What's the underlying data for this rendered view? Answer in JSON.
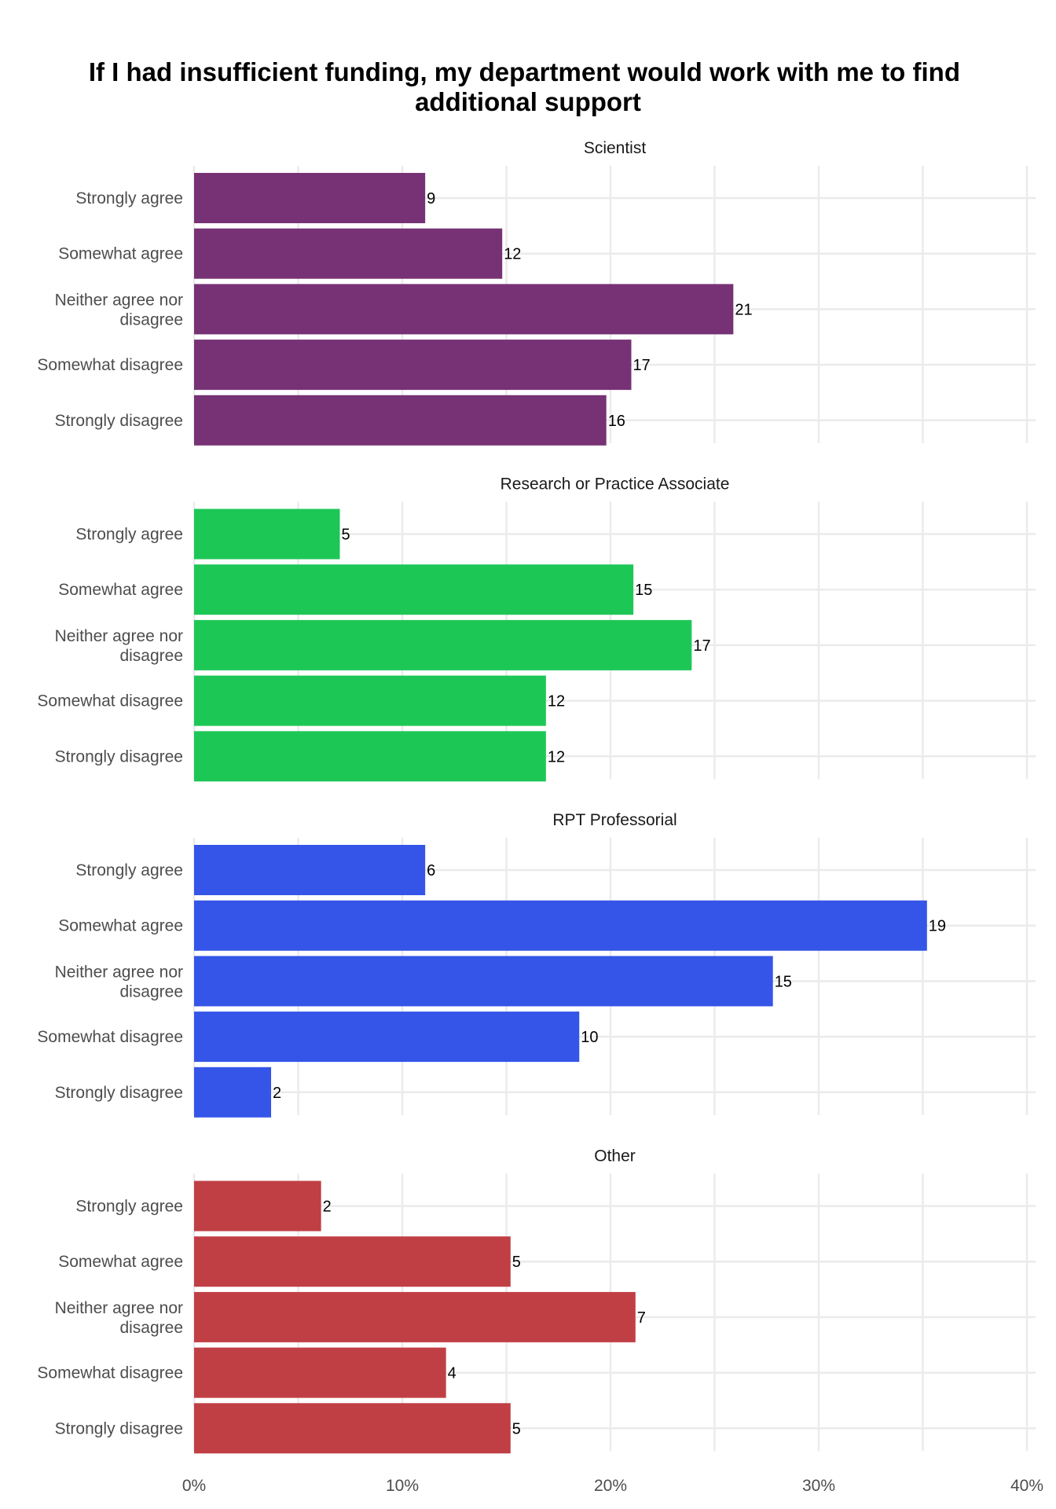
{
  "chart_data": {
    "type": "bar",
    "orientation": "horizontal",
    "title": "If I had insufficient funding, my department would work with me to find additional support",
    "title_lines": [
      "If I had insufficient funding, my department would work with me to find",
      "additional support"
    ],
    "categories": [
      "Strongly agree",
      "Somewhat agree",
      "Neither agree nor disagree",
      "Somewhat disagree",
      "Strongly disagree"
    ],
    "category_lines": [
      [
        "Strongly agree"
      ],
      [
        "Somewhat agree"
      ],
      [
        "Neither agree nor",
        "disagree"
      ],
      [
        "Somewhat disagree"
      ],
      [
        "Strongly disagree"
      ]
    ],
    "x_ticks": [
      "0%",
      "10%",
      "20%",
      "30%",
      "40%"
    ],
    "xlim": [
      0,
      40
    ],
    "value_unit": "percent",
    "grid": true,
    "legend": "none",
    "facets": [
      {
        "name": "Scientist",
        "color": "#773275",
        "percent": [
          11.1,
          14.8,
          25.9,
          21.0,
          19.8
        ],
        "counts": [
          "9",
          "12",
          "21",
          "17",
          "16"
        ]
      },
      {
        "name": "Research or Practice Associate",
        "color": "#1dc756",
        "percent": [
          7.0,
          21.1,
          23.9,
          16.9,
          16.9
        ],
        "counts": [
          "5",
          "15",
          "17",
          "12",
          "12"
        ]
      },
      {
        "name": "RPT Professorial",
        "color": "#3455e8",
        "percent": [
          11.1,
          35.2,
          27.8,
          18.5,
          3.7
        ],
        "counts": [
          "6",
          "19",
          "15",
          "10",
          "2"
        ]
      },
      {
        "name": "Other",
        "color": "#c03f45",
        "percent": [
          6.1,
          15.2,
          21.2,
          12.1,
          15.2
        ],
        "counts": [
          "2",
          "5",
          "7",
          "4",
          "5"
        ]
      }
    ]
  }
}
